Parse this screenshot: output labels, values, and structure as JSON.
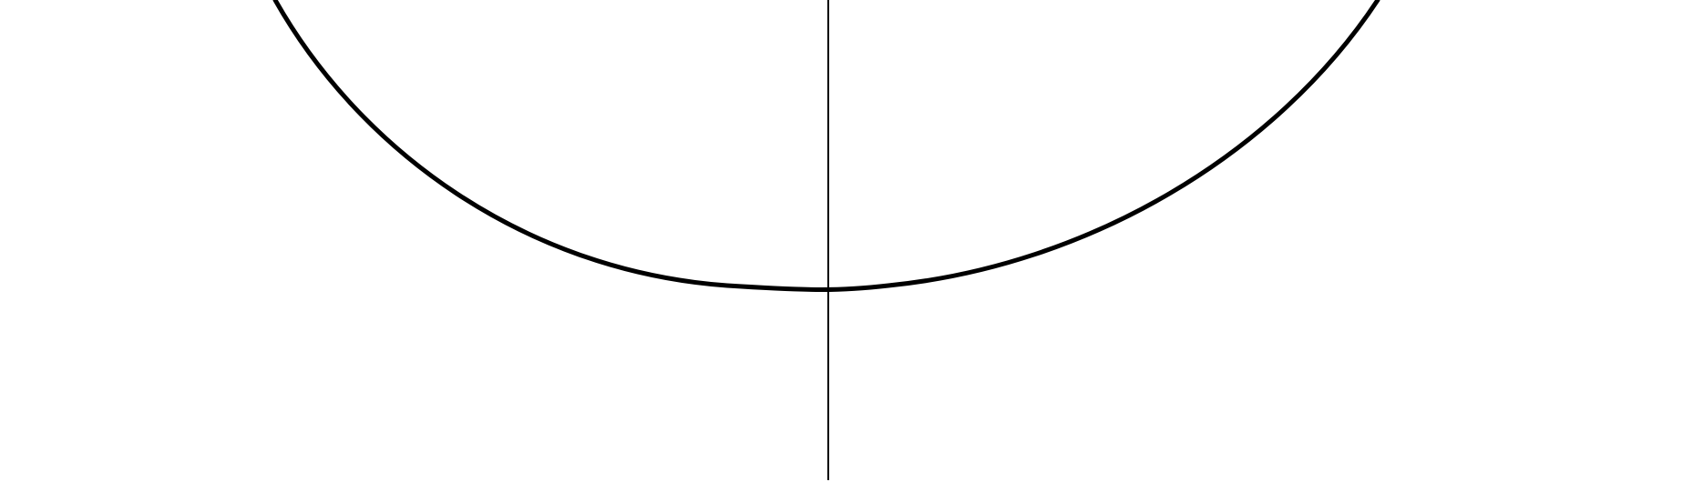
{
  "diagram": {
    "background": "#ffffff",
    "stroke_color": "#000000"
  }
}
